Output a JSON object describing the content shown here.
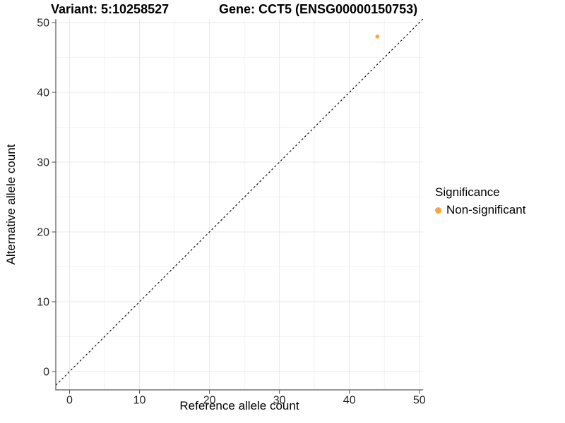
{
  "chart_data": {
    "type": "scatter",
    "title_left": "Variant: 5:10258527",
    "title_right": "Gene: CCT5 (ENSG00000150753)",
    "xlabel": "Reference allele count",
    "ylabel": "Alternative allele count",
    "xlim": [
      -1.97,
      50.53
    ],
    "ylim": [
      -2.63,
      50.51
    ],
    "xticks": [
      0,
      10,
      20,
      30,
      40,
      50
    ],
    "yticks": [
      0,
      10,
      20,
      30,
      40,
      50
    ],
    "xminor": [
      5,
      15,
      25,
      35,
      45
    ],
    "yminor": [
      5,
      15,
      25,
      35,
      45
    ],
    "grid": "major+minor",
    "series": [
      {
        "name": "Non-significant",
        "color": "#FBA43D",
        "points": [
          {
            "x": 44,
            "y": 48
          }
        ]
      }
    ],
    "reference_line": {
      "type": "identity",
      "slope": 1,
      "intercept": 0,
      "style": "dashed",
      "color": "#000000"
    },
    "legend": {
      "title": "Significance",
      "position": "right",
      "entries": [
        {
          "label": "Non-significant",
          "color": "#FBA43D"
        }
      ]
    }
  },
  "colors": {
    "background": "#FFFFFF",
    "axis": "#595959",
    "tick_text": "#262626",
    "grid_major": "#E8E8E8",
    "grid_minor": "#F2F2F2",
    "point": "#FBA43D"
  }
}
